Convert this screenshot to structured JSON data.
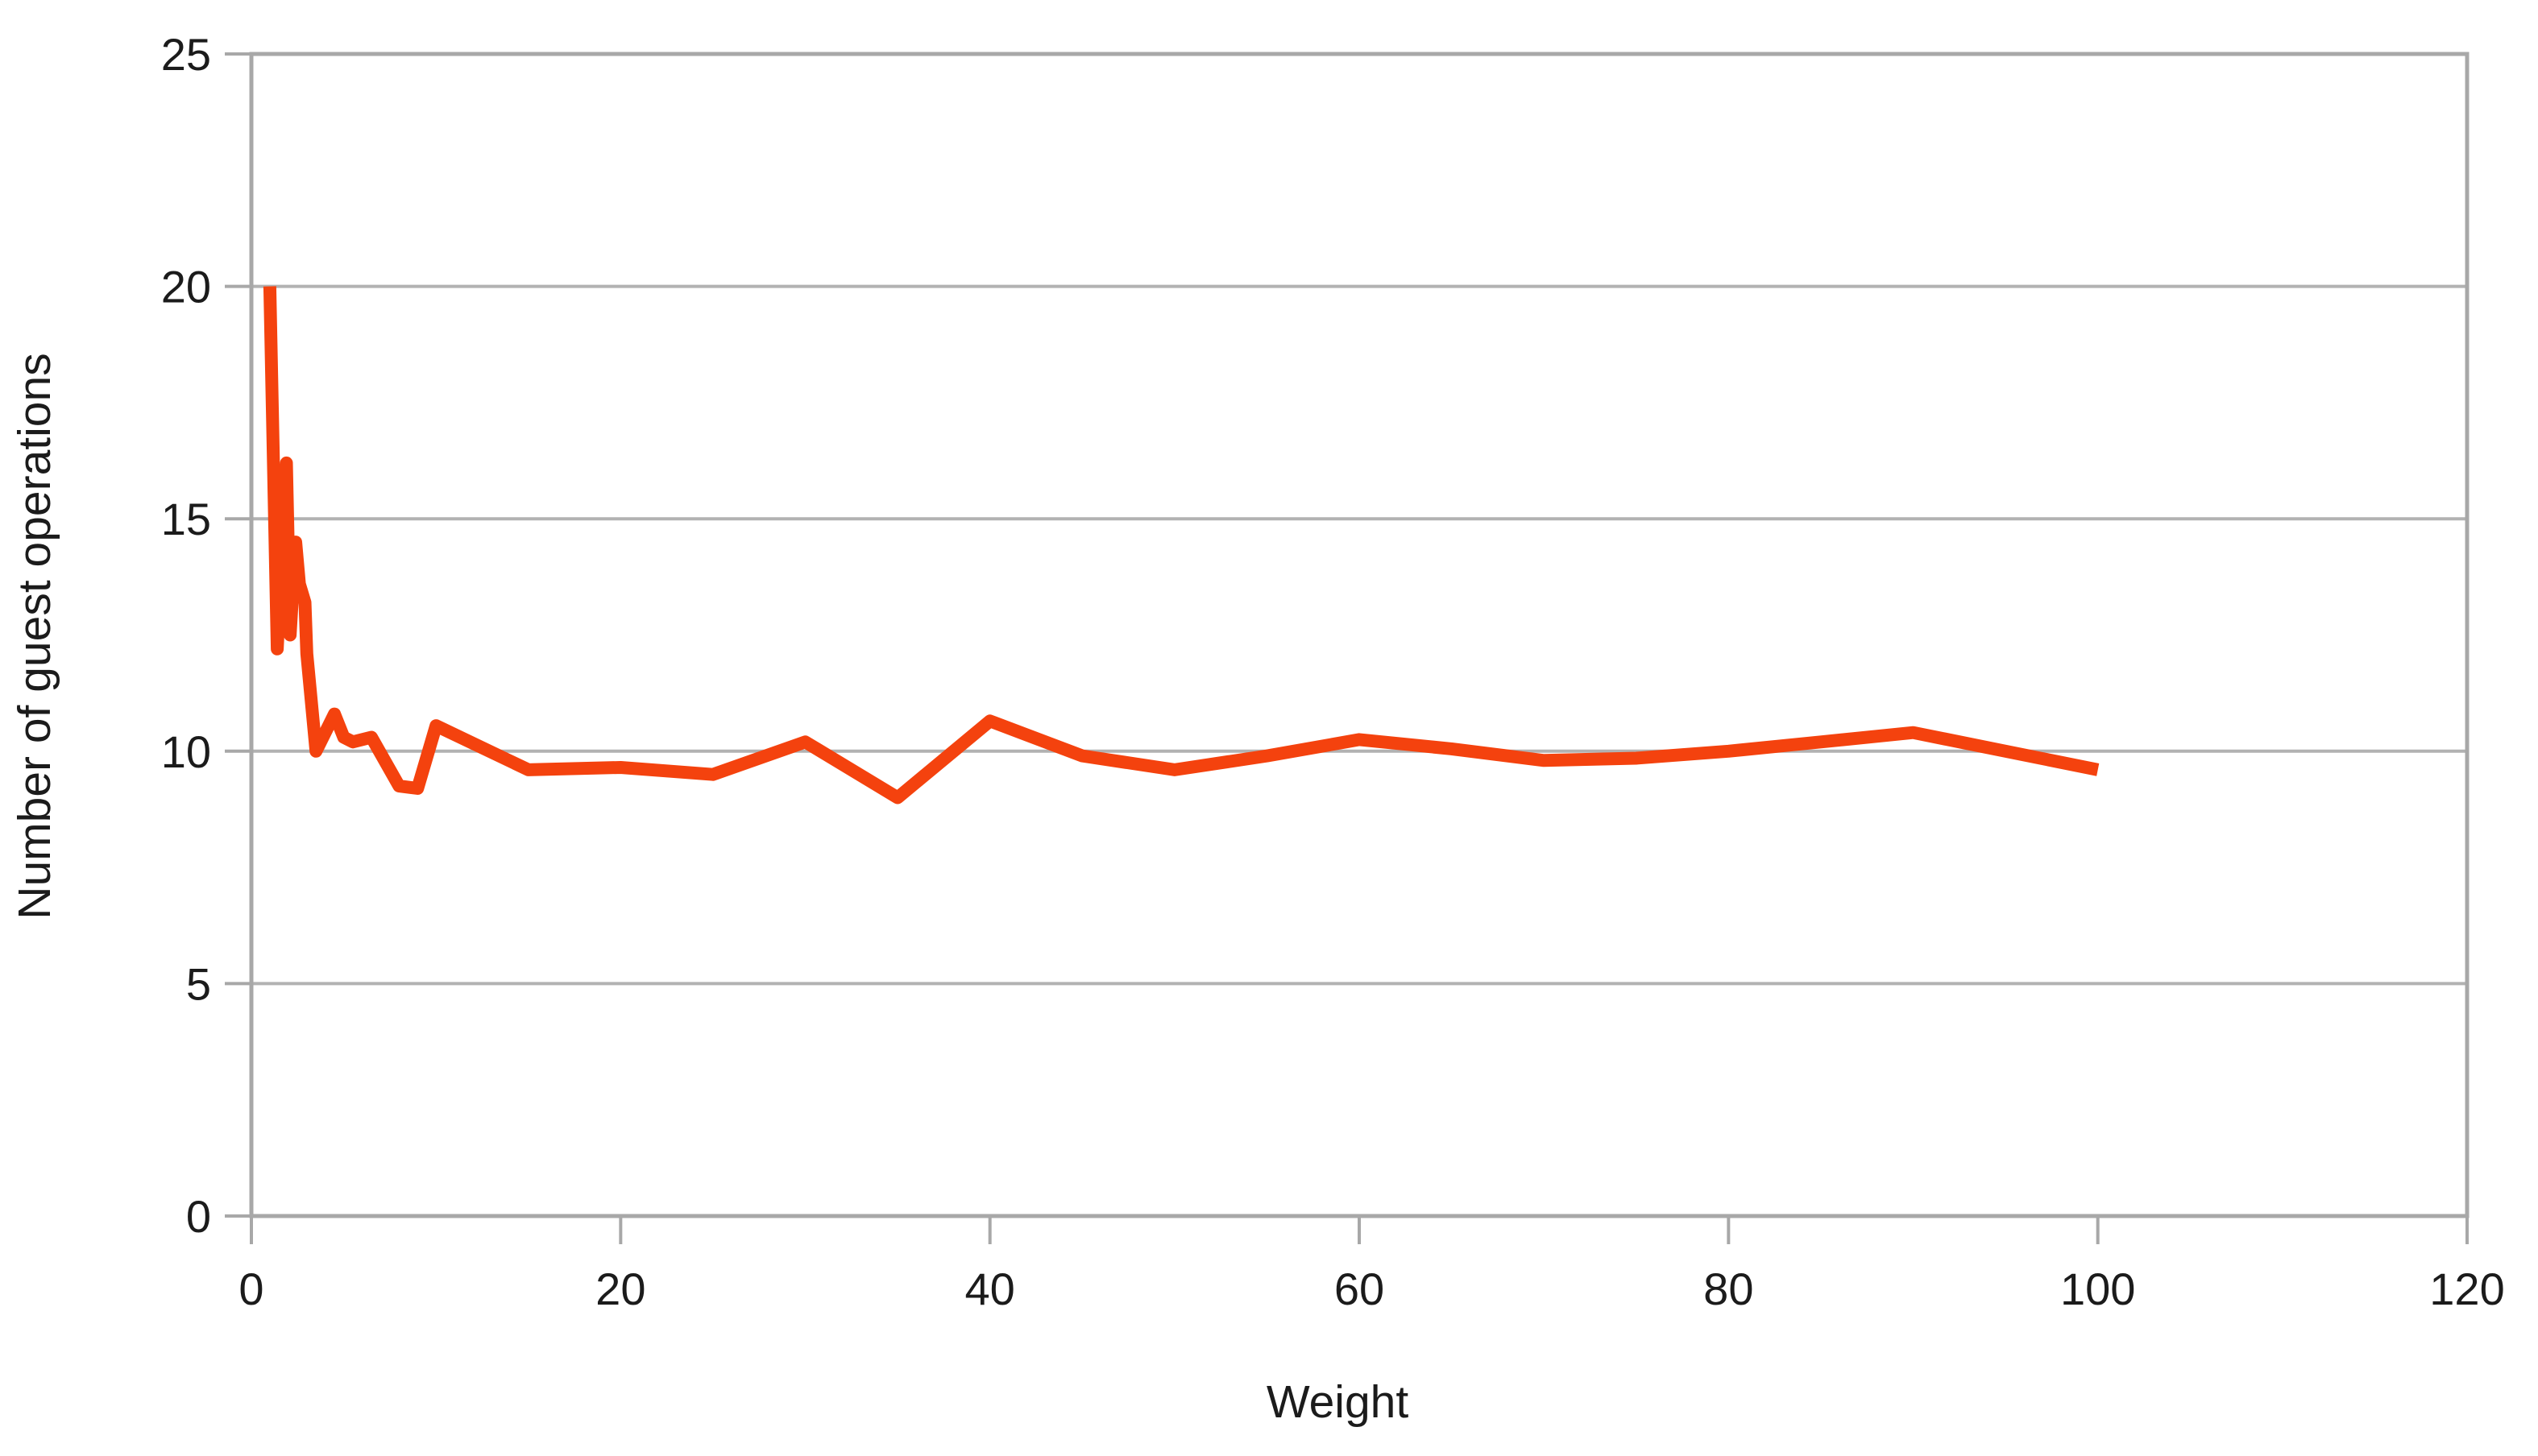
{
  "chart_data": {
    "type": "line",
    "title": "",
    "xlabel": "Weight",
    "ylabel": "Number of guest operations",
    "xlim": [
      0,
      120
    ],
    "ylim": [
      0,
      25
    ],
    "x_ticks": [
      0,
      20,
      40,
      60,
      80,
      100,
      120
    ],
    "y_ticks": [
      0,
      5,
      10,
      15,
      20,
      25
    ],
    "grid": "horizontal gridlines at each y tick, plot area outlined",
    "legend": "none",
    "colors": {
      "line": "#f4420e",
      "grid": "#b2b2b2",
      "axis": "#a8a8a8",
      "text": "#1b1b1b",
      "background": "#ffffff"
    },
    "series": [
      {
        "name": "Number of guest operations",
        "color": "#f4420e",
        "points": [
          [
            1,
            20.0
          ],
          [
            1.4,
            12.2
          ],
          [
            1.9,
            16.2
          ],
          [
            2.1,
            12.5
          ],
          [
            2.4,
            14.5
          ],
          [
            2.6,
            13.6
          ],
          [
            2.9,
            13.2
          ],
          [
            3.0,
            12.1
          ],
          [
            3.5,
            10.0
          ],
          [
            4.5,
            10.8
          ],
          [
            5,
            10.3
          ],
          [
            5.5,
            10.2
          ],
          [
            6.5,
            10.3
          ],
          [
            8,
            9.25
          ],
          [
            9,
            9.2
          ],
          [
            10,
            10.55
          ],
          [
            15,
            9.6
          ],
          [
            20,
            9.65
          ],
          [
            25,
            9.5
          ],
          [
            30,
            10.2
          ],
          [
            35,
            9.0
          ],
          [
            40,
            10.65
          ],
          [
            45,
            9.9
          ],
          [
            50,
            9.6
          ],
          [
            55,
            9.9
          ],
          [
            60,
            10.25
          ],
          [
            65,
            10.05
          ],
          [
            70,
            9.8
          ],
          [
            75,
            9.85
          ],
          [
            80,
            10.0
          ],
          [
            85,
            10.2
          ],
          [
            90,
            10.4
          ],
          [
            95,
            10.0
          ],
          [
            100,
            9.6
          ]
        ]
      }
    ]
  }
}
